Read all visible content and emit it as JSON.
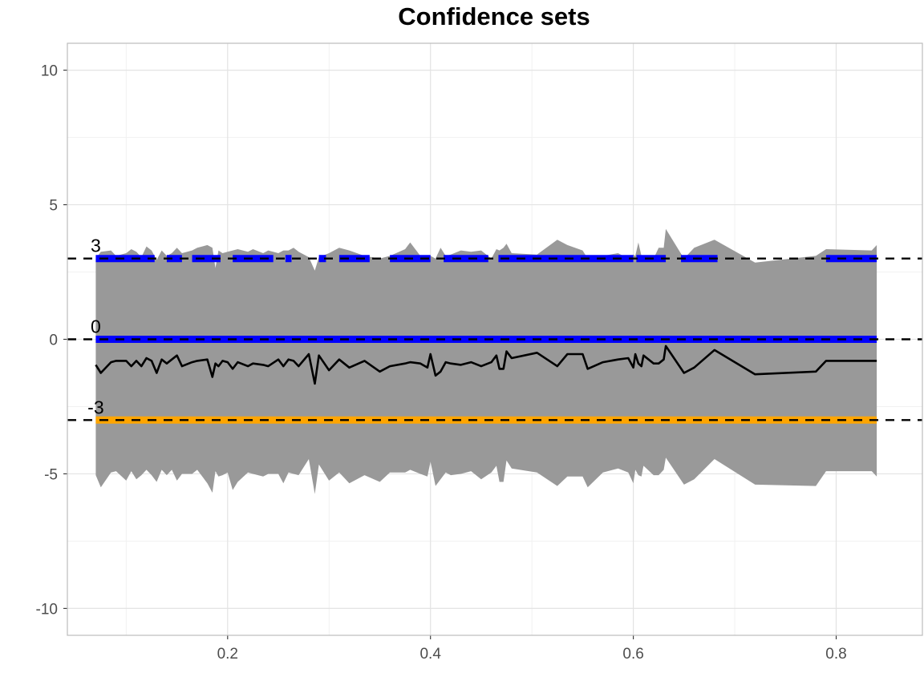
{
  "chart_data": {
    "type": "area",
    "title": "Confidence sets",
    "xlabel": "",
    "ylabel": "",
    "xlim": [
      0.042,
      0.885
    ],
    "ylim": [
      -11,
      11
    ],
    "x_ticks": [
      0.2,
      0.4,
      0.6,
      0.8
    ],
    "x_tick_labels": [
      "0.2",
      "0.4",
      "0.6",
      "0.8"
    ],
    "y_ticks": [
      -10,
      -5,
      0,
      5,
      10
    ],
    "y_tick_labels": [
      "-10",
      "-5",
      "0",
      "5",
      "10"
    ],
    "grid": true,
    "legend": "none",
    "colors": {
      "band": "#999999",
      "estimate": "#000000",
      "blue": "#0000ff",
      "orange": "#ffa500",
      "reference": "#000000",
      "grid_major": "#e3e3e3",
      "grid_minor": "#f1f1f1",
      "panel_border": "#bcbcbc"
    },
    "x": [
      0.07,
      0.075,
      0.085,
      0.09,
      0.1,
      0.105,
      0.11,
      0.115,
      0.12,
      0.125,
      0.13,
      0.135,
      0.14,
      0.145,
      0.15,
      0.155,
      0.165,
      0.17,
      0.18,
      0.185,
      0.188,
      0.191,
      0.195,
      0.2,
      0.205,
      0.21,
      0.22,
      0.225,
      0.235,
      0.24,
      0.25,
      0.255,
      0.26,
      0.265,
      0.27,
      0.28,
      0.286,
      0.29,
      0.3,
      0.31,
      0.32,
      0.335,
      0.35,
      0.36,
      0.375,
      0.38,
      0.39,
      0.397,
      0.4,
      0.405,
      0.41,
      0.415,
      0.42,
      0.43,
      0.44,
      0.45,
      0.46,
      0.465,
      0.468,
      0.472,
      0.475,
      0.48,
      0.505,
      0.525,
      0.535,
      0.55,
      0.555,
      0.57,
      0.585,
      0.595,
      0.6,
      0.602,
      0.605,
      0.608,
      0.61,
      0.62,
      0.625,
      0.63,
      0.632,
      0.65,
      0.66,
      0.68,
      0.72,
      0.78,
      0.79,
      0.835,
      0.84
    ],
    "series": [
      {
        "role": "estimate",
        "values": [
          -0.95,
          -1.25,
          -0.85,
          -0.8,
          -0.8,
          -1.0,
          -0.8,
          -1.0,
          -0.7,
          -0.8,
          -1.25,
          -0.75,
          -0.9,
          -0.75,
          -0.6,
          -1.0,
          -0.85,
          -0.8,
          -0.75,
          -1.4,
          -0.9,
          -1.0,
          -0.8,
          -0.85,
          -1.1,
          -0.85,
          -1.0,
          -0.9,
          -0.95,
          -1.0,
          -0.75,
          -1.0,
          -0.75,
          -0.8,
          -1.0,
          -0.55,
          -1.65,
          -0.6,
          -1.15,
          -0.75,
          -1.05,
          -0.8,
          -1.2,
          -1.0,
          -0.9,
          -0.85,
          -0.9,
          -1.05,
          -0.55,
          -1.35,
          -1.2,
          -0.85,
          -0.9,
          -0.95,
          -0.85,
          -1.0,
          -0.85,
          -0.6,
          -1.1,
          -1.1,
          -0.45,
          -0.7,
          -0.5,
          -1.0,
          -0.55,
          -0.55,
          -1.1,
          -0.85,
          -0.75,
          -0.7,
          -1.05,
          -0.55,
          -0.9,
          -1.0,
          -0.6,
          -0.9,
          -0.9,
          -0.75,
          -0.25,
          -1.25,
          -1.05,
          -0.4,
          -1.3,
          -1.2,
          -0.8,
          -0.8,
          -0.8
        ]
      },
      {
        "role": "band-upper",
        "values": [
          3.0,
          3.25,
          3.3,
          3.1,
          3.2,
          3.35,
          3.25,
          3.05,
          3.45,
          3.3,
          2.95,
          3.3,
          3.1,
          3.2,
          3.4,
          3.2,
          3.3,
          3.4,
          3.5,
          3.4,
          2.65,
          3.3,
          3.2,
          3.25,
          3.3,
          3.35,
          3.25,
          3.35,
          3.2,
          3.3,
          3.2,
          3.3,
          3.3,
          3.4,
          3.25,
          3.05,
          2.55,
          3.05,
          3.2,
          3.4,
          3.3,
          3.1,
          3.0,
          3.1,
          3.35,
          3.6,
          3.1,
          3.05,
          3.1,
          3.0,
          3.4,
          3.1,
          3.15,
          3.3,
          3.25,
          3.3,
          3.0,
          3.35,
          3.3,
          3.4,
          3.55,
          3.2,
          3.15,
          3.7,
          3.5,
          3.3,
          3.0,
          3.1,
          3.2,
          3.0,
          3.15,
          3.1,
          3.6,
          3.1,
          3.0,
          3.0,
          3.4,
          3.4,
          4.1,
          3.0,
          3.4,
          3.7,
          2.85,
          3.1,
          3.35,
          3.3,
          3.5
        ]
      },
      {
        "role": "band-lower",
        "values": [
          -5.05,
          -5.5,
          -4.95,
          -4.9,
          -5.25,
          -4.9,
          -5.2,
          -5.05,
          -4.85,
          -5.05,
          -5.3,
          -4.85,
          -5.05,
          -4.85,
          -5.25,
          -5.0,
          -5.0,
          -4.85,
          -5.35,
          -5.7,
          -4.9,
          -5.1,
          -5.05,
          -4.95,
          -5.6,
          -5.3,
          -4.95,
          -5.0,
          -5.1,
          -5.0,
          -5.0,
          -5.35,
          -4.95,
          -5.0,
          -5.05,
          -4.45,
          -5.75,
          -4.65,
          -5.25,
          -4.95,
          -5.35,
          -5.05,
          -5.3,
          -4.95,
          -4.95,
          -4.85,
          -5.0,
          -5.1,
          -4.55,
          -5.45,
          -5.2,
          -4.95,
          -5.05,
          -5.0,
          -4.9,
          -5.2,
          -4.95,
          -4.7,
          -5.3,
          -5.3,
          -4.5,
          -4.8,
          -4.95,
          -5.45,
          -5.1,
          -5.1,
          -5.5,
          -4.95,
          -4.8,
          -4.95,
          -5.35,
          -4.85,
          -5.05,
          -5.1,
          -4.7,
          -5.05,
          -5.05,
          -4.85,
          -4.4,
          -5.4,
          -5.2,
          -4.45,
          -5.4,
          -5.45,
          -4.9,
          -4.9,
          -5.1
        ]
      }
    ],
    "reference_lines": [
      {
        "y": 3,
        "label": "3",
        "style": "dashed"
      },
      {
        "y": 0,
        "label": "0",
        "style": "dashed"
      },
      {
        "y": -3,
        "label": "-3",
        "style": "dashed"
      }
    ],
    "coverage_segments": [
      {
        "y": 0,
        "color": "blue",
        "intervals": [
          [
            0.07,
            0.84
          ]
        ]
      },
      {
        "y": -3,
        "color": "orange",
        "intervals": [
          [
            0.07,
            0.84
          ]
        ]
      },
      {
        "y": 3,
        "color": "blue",
        "intervals": [
          [
            0.07,
            0.128
          ],
          [
            0.14,
            0.155
          ],
          [
            0.165,
            0.193
          ],
          [
            0.205,
            0.245
          ],
          [
            0.257,
            0.263
          ],
          [
            0.29,
            0.297
          ],
          [
            0.31,
            0.34
          ],
          [
            0.36,
            0.4
          ],
          [
            0.413,
            0.457
          ],
          [
            0.467,
            0.6
          ],
          [
            0.603,
            0.632
          ],
          [
            0.647,
            0.683
          ],
          [
            0.79,
            0.84
          ]
        ]
      }
    ]
  }
}
